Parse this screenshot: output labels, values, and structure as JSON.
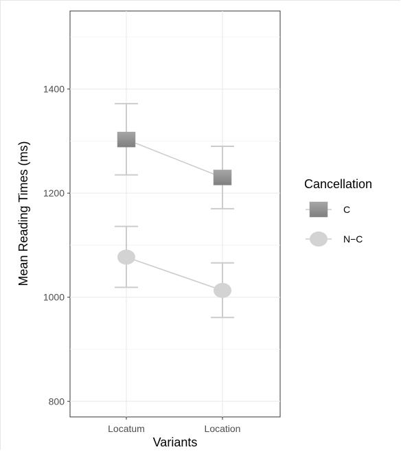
{
  "chart_data": {
    "type": "line",
    "xlabel": "Variants",
    "ylabel": "Mean Reading Times (ms)",
    "categories": [
      "Locatum",
      "Location"
    ],
    "ylim": [
      770,
      1550
    ],
    "yticks": [
      800,
      1000,
      1200,
      1400
    ],
    "grid": true,
    "legend": {
      "title": "Cancellation",
      "placement": "right"
    },
    "series": [
      {
        "name": "C",
        "shape": "square",
        "color": "#8c8c8c",
        "values": [
          1303,
          1230
        ],
        "error_low": [
          1235,
          1170
        ],
        "error_high": [
          1372,
          1290
        ]
      },
      {
        "name": "N−C",
        "shape": "circle",
        "color": "#d3d3d3",
        "values": [
          1077,
          1013
        ],
        "error_low": [
          1019,
          961
        ],
        "error_high": [
          1136,
          1066
        ]
      }
    ],
    "line_color": "#cccccc",
    "errorbar_color": "#cccccc"
  }
}
